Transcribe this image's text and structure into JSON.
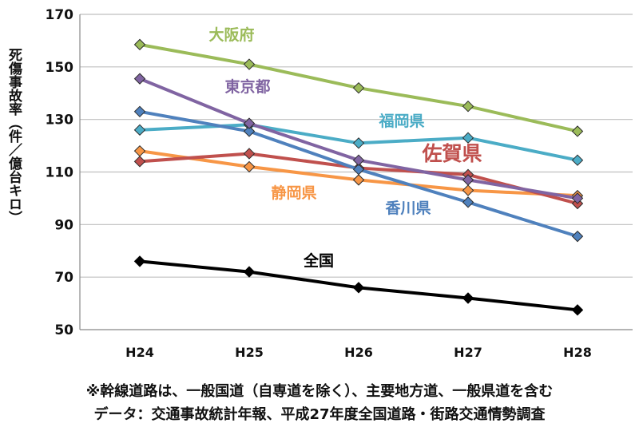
{
  "chart_data": {
    "type": "line",
    "title": "",
    "xlabel": "",
    "ylabel": "死傷事故率（件／億台キロ）",
    "categories": [
      "H24",
      "H25",
      "H26",
      "H27",
      "H28"
    ],
    "ylim": [
      50,
      170
    ],
    "yticks": [
      50,
      70,
      90,
      110,
      130,
      150,
      170
    ],
    "grid": true,
    "series": [
      {
        "name": "大阪府",
        "color": "#9bbb59",
        "values": [
          158.5,
          151,
          142,
          135,
          125.5
        ]
      },
      {
        "name": "東京都",
        "color": "#8064a2",
        "values": [
          145.5,
          128.5,
          114.5,
          107,
          100
        ]
      },
      {
        "name": "福岡県",
        "color": "#4bacc6",
        "values": [
          126,
          128,
          121,
          123,
          114.5
        ]
      },
      {
        "name": "佐賀県",
        "color": "#c0504d",
        "values": [
          114,
          117,
          111.5,
          109,
          98
        ]
      },
      {
        "name": "静岡県",
        "color": "#f79646",
        "values": [
          118,
          112,
          107,
          103,
          101
        ]
      },
      {
        "name": "香川県",
        "color": "#4f81bd",
        "values": [
          133,
          125.5,
          111,
          98.5,
          85.5
        ]
      },
      {
        "name": "全国",
        "color": "#000000",
        "values": [
          76,
          72,
          66,
          62,
          57.5
        ]
      }
    ]
  },
  "notes": {
    "line1": "※幹線道路は、一般国道（自専道を除く）、主要地方道、一般県道を含む",
    "line2": "データ：交通事故統計年報、平成27年度全国道路・街路交通情勢調査"
  }
}
